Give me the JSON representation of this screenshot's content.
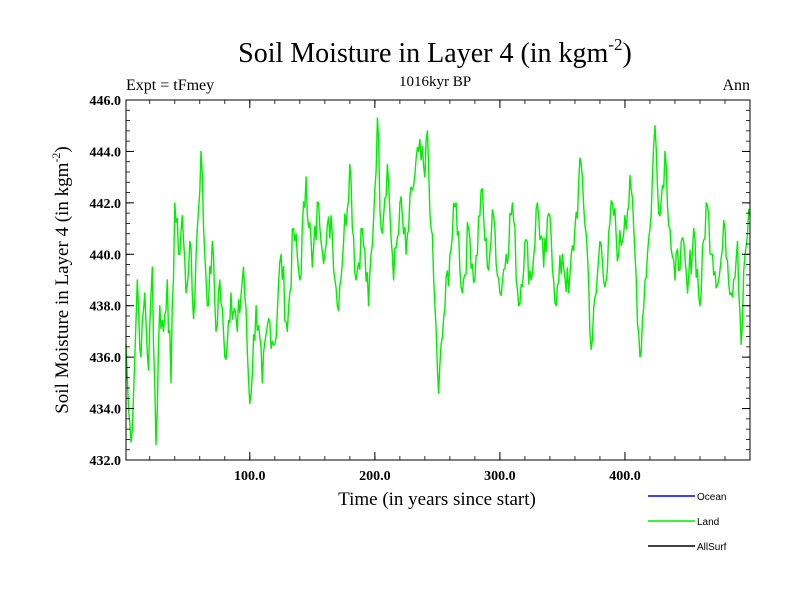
{
  "chart_data": {
    "type": "line",
    "title": "Soil Moisture in Layer 4 (in kgm",
    "title_superscript": "-2",
    "title_suffix": ")",
    "subtitle": "1016kyr BP",
    "left_label": "Expt = tFmey",
    "right_label": "Ann",
    "xlabel": "Time (in years since start)",
    "ylabel": "Soil Moisture in Layer 4 (in kgm",
    "ylabel_superscript": "-2",
    "ylabel_suffix": ")",
    "xlim": [
      1,
      500
    ],
    "ylim": [
      432,
      446
    ],
    "x_ticks": [
      100,
      200,
      300,
      400
    ],
    "x_tick_labels": [
      "100.0",
      "200.0",
      "300.0",
      "400.0"
    ],
    "y_ticks": [
      432,
      434,
      436,
      438,
      440,
      442,
      444,
      446
    ],
    "y_tick_labels": [
      "432.0",
      "434.0",
      "436.0",
      "438.0",
      "440.0",
      "442.0",
      "444.0",
      "446.0"
    ],
    "legend": [
      {
        "name": "Ocean",
        "color": "#0000ff"
      },
      {
        "name": "Land",
        "color": "#00ee00"
      },
      {
        "name": "AllSurf",
        "color": "#000000"
      }
    ],
    "series": [
      {
        "name": "Land",
        "color": "#00ee00",
        "anchors": [
          [
            1,
            436.5
          ],
          [
            3,
            434.0
          ],
          [
            5,
            432.7
          ],
          [
            8,
            436.0
          ],
          [
            10,
            439.0
          ],
          [
            13,
            436.0
          ],
          [
            16,
            438.5
          ],
          [
            19,
            435.5
          ],
          [
            22,
            439.5
          ],
          [
            25,
            432.6
          ],
          [
            28,
            438.0
          ],
          [
            31,
            437.0
          ],
          [
            34,
            439.0
          ],
          [
            37,
            435.0
          ],
          [
            40,
            442.0
          ],
          [
            43,
            440.0
          ],
          [
            46,
            441.5
          ],
          [
            49,
            438.5
          ],
          [
            52,
            440.5
          ],
          [
            55,
            437.5
          ],
          [
            58,
            441.0
          ],
          [
            61,
            444.0
          ],
          [
            64,
            440.0
          ],
          [
            67,
            438.0
          ],
          [
            70,
            440.5
          ],
          [
            73,
            437.0
          ],
          [
            76,
            439.0
          ],
          [
            80,
            436.0
          ],
          [
            85,
            438.5
          ],
          [
            90,
            437.0
          ],
          [
            95,
            439.5
          ],
          [
            100,
            434.2
          ],
          [
            105,
            438.0
          ],
          [
            110,
            435.0
          ],
          [
            115,
            437.5
          ],
          [
            120,
            436.5
          ],
          [
            125,
            440.0
          ],
          [
            130,
            437.0
          ],
          [
            135,
            441.0
          ],
          [
            140,
            439.0
          ],
          [
            145,
            443.0
          ],
          [
            150,
            439.5
          ],
          [
            155,
            442.0
          ],
          [
            160,
            440.0
          ],
          [
            165,
            441.5
          ],
          [
            170,
            438.0
          ],
          [
            175,
            440.5
          ],
          [
            180,
            443.5
          ],
          [
            185,
            439.0
          ],
          [
            190,
            441.0
          ],
          [
            195,
            438.0
          ],
          [
            200,
            442.5
          ],
          [
            202,
            445.3
          ],
          [
            205,
            441.0
          ],
          [
            210,
            443.5
          ],
          [
            215,
            439.0
          ],
          [
            220,
            442.0
          ],
          [
            225,
            440.0
          ],
          [
            230,
            442.5
          ],
          [
            235,
            444.0
          ],
          [
            240,
            443.0
          ],
          [
            242,
            444.8
          ],
          [
            245,
            441.0
          ],
          [
            248,
            438.0
          ],
          [
            251,
            434.6
          ],
          [
            255,
            437.5
          ],
          [
            260,
            440.0
          ],
          [
            265,
            442.0
          ],
          [
            270,
            438.5
          ],
          [
            275,
            441.0
          ],
          [
            280,
            439.0
          ],
          [
            285,
            442.5
          ],
          [
            290,
            439.5
          ],
          [
            295,
            441.5
          ],
          [
            300,
            438.5
          ],
          [
            305,
            440.0
          ],
          [
            310,
            442.0
          ],
          [
            315,
            438.0
          ],
          [
            320,
            440.5
          ],
          [
            325,
            439.0
          ],
          [
            330,
            442.0
          ],
          [
            335,
            439.5
          ],
          [
            340,
            441.5
          ],
          [
            345,
            438.0
          ],
          [
            350,
            440.0
          ],
          [
            355,
            438.5
          ],
          [
            360,
            441.0
          ],
          [
            365,
            443.5
          ],
          [
            370,
            440.0
          ],
          [
            373,
            436.3
          ],
          [
            377,
            438.5
          ],
          [
            380,
            440.5
          ],
          [
            385,
            439.0
          ],
          [
            390,
            442.0
          ],
          [
            395,
            440.0
          ],
          [
            400,
            441.5
          ],
          [
            405,
            442.5
          ],
          [
            408,
            440.0
          ],
          [
            412,
            436.0
          ],
          [
            416,
            439.0
          ],
          [
            420,
            441.0
          ],
          [
            424,
            445.0
          ],
          [
            428,
            441.5
          ],
          [
            432,
            444.0
          ],
          [
            436,
            441.0
          ],
          [
            440,
            439.0
          ],
          [
            445,
            440.5
          ],
          [
            450,
            438.5
          ],
          [
            455,
            441.0
          ],
          [
            460,
            438.0
          ],
          [
            465,
            442.0
          ],
          [
            470,
            440.0
          ],
          [
            475,
            439.0
          ],
          [
            480,
            441.0
          ],
          [
            485,
            438.5
          ],
          [
            490,
            440.5
          ],
          [
            493,
            436.5
          ],
          [
            496,
            440.0
          ],
          [
            500,
            441.5
          ]
        ]
      }
    ]
  }
}
